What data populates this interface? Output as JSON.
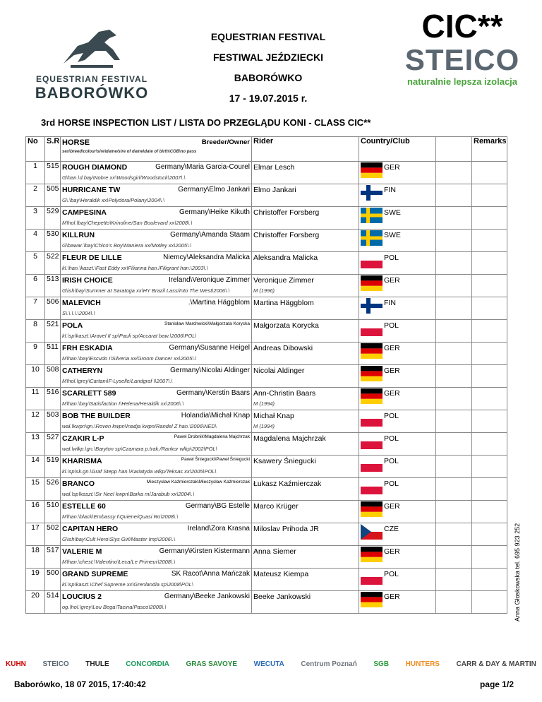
{
  "header": {
    "logo_left_line1": "EQUESTRIAN FESTIVAL",
    "logo_left_line2": "BABORÓWKO",
    "title_lines": [
      "EQUESTRIAN FESTIVAL",
      "FESTIWAL JEŹDZIECKI",
      "BABORÓWKO",
      "17 - 19.07.2015 r."
    ],
    "logo_right_class": "CIC**",
    "logo_right_brand": "STEICO",
    "logo_right_tagline": "naturalnie lepsza izolacja"
  },
  "list_title": "3rd HORSE INSPECTION LIST / LISTA DO PRZEGLĄDU KONI - CLASS CIC**",
  "columns": {
    "no": "No",
    "sreg": "S.Reg.",
    "horse": "HORSE",
    "breeder": "Breeder/Owner",
    "horse_sub": "sex\\breed\\colour\\sire\\dame/sire of dame\\date of birth\\COB\\no pass",
    "rider": "Rider",
    "country": "Country/Club",
    "remarks": "Remarks"
  },
  "flag_colors": {
    "GER": [
      "#000000",
      "#dd0000",
      "#ffce00"
    ],
    "POL": [
      "#ffffff",
      "#dc143c"
    ],
    "FIN": [
      "#ffffff",
      "#003580"
    ],
    "SWE": [
      "#006aa7",
      "#fecc00"
    ],
    "CZE": [
      "#ffffff",
      "#d7141a",
      "#11457e"
    ]
  },
  "rows": [
    {
      "no": "1",
      "sreg": "515",
      "horse": "ROUGH DIAMOND",
      "owner": "Germany\\Maria Garcia-Courel",
      "details": "G\\han.\\d.bay\\Nobre xx\\Woodsgirl/Woodstock\\2007\\.\\",
      "rider": "Elmar Lesch",
      "rider_sub": "",
      "country": "GER"
    },
    {
      "no": "2",
      "sreg": "505",
      "horse": "HURRICANE TW",
      "owner": "Germany\\Elmo Jankari",
      "details": "G\\.\\bay\\Heraldik xx\\Polydora/Polany\\2004\\.\\",
      "rider": "Elmo Jankari",
      "rider_sub": "",
      "country": "FIN"
    },
    {
      "no": "3",
      "sreg": "529",
      "horse": "CAMPESINA",
      "owner": "Germany\\Heike Kikuth",
      "details": "M\\hol.\\bay\\Chepetto\\Krinoline/San Boulevard xx\\2008\\.\\",
      "rider": "Christoffer Forsberg",
      "rider_sub": "",
      "country": "SWE"
    },
    {
      "no": "4",
      "sreg": "530",
      "horse": "KILLRUN",
      "owner": "Germany\\Amanda Staam",
      "details": "G\\bawar.\\bay\\Chico's Boy\\Maniera xx/Motley xx\\2005\\.\\",
      "rider": "Christoffer Forsberg",
      "rider_sub": "",
      "country": "SWE"
    },
    {
      "no": "5",
      "sreg": "522",
      "horse": "FLEUR DE LILLE",
      "owner": "Niemcy\\Aleksandra Malicka",
      "details": "kl.\\han.\\kaszt.\\Fast Eddy xx\\Filianna han./Filigrant han.\\2003\\.\\",
      "rider": "Aleksandra Malicka",
      "rider_sub": "",
      "country": "POL"
    },
    {
      "no": "6",
      "sreg": "513",
      "horse": "IRISH CHOICE",
      "owner": "Ireland\\Veronique Zimmer",
      "details": "G\\ish\\bay\\Summer at Saratoga xx\\HY Brazil Lass/Into The West\\2006\\.\\",
      "rider": "Veronique Zimmer",
      "rider_sub": "M (1996)",
      "country": "GER"
    },
    {
      "no": "7",
      "sreg": "506",
      "horse": "MALEVICH",
      "owner": ".\\Martina Häggblom",
      "details": "S\\.\\.\\.\\.\\2004\\.\\",
      "rider": "Martina Häggblom",
      "rider_sub": "",
      "country": "FIN"
    },
    {
      "no": "8",
      "sreg": "521",
      "horse": "POLA",
      "owner": "Stanisław Marchwicki\\Małgorzata Korycka",
      "owner_small": true,
      "details": "kl.\\sp\\kaszt.\\Aravel II sp\\Pauli sp/Accarat baw.\\2006\\POL\\",
      "rider": "Małgorzata Korycka",
      "rider_sub": "",
      "country": "POL"
    },
    {
      "no": "9",
      "sreg": "511",
      "horse": "FRH ESKADIA",
      "owner": "Germany\\Susanne Heigel",
      "details": "M\\han.\\bay\\Escudo I\\Silveria xx/Groom Dancer xx\\2005\\.\\",
      "rider": "Andreas Dibowski",
      "rider_sub": "",
      "country": "GER"
    },
    {
      "no": "10",
      "sreg": "508",
      "horse": "CATHERYN",
      "owner": "Germany\\Nicolai Aldinger",
      "details": "M\\hol.\\grey\\Cartani\\F-Lyselle/Landgraf I\\2007\\.\\",
      "rider": "Nicolai Aldinger",
      "rider_sub": "",
      "country": "GER"
    },
    {
      "no": "11",
      "sreg": "516",
      "horse": "SCARLETT 589",
      "owner": "Germany\\Kerstin Baars",
      "details": "M\\han.\\bay\\Satisfaction I\\Helena/Heraldik xx\\2006\\.\\",
      "rider": "Ann-Christin Baars",
      "rider_sub": "M (1994)",
      "country": "GER"
    },
    {
      "no": "12",
      "sreg": "503",
      "horse": "BOB THE BUILDER",
      "owner": "Holandia\\Michał Knap",
      "details": "wał.\\kwpn\\gn.\\Roven kwpn\\Inadja kwpn/Randel Z han.\\2006\\NED\\",
      "rider": "Michał Knap",
      "rider_sub": "M (1994)",
      "country": "POL"
    },
    {
      "no": "13",
      "sreg": "527",
      "horse": "CZAKIR L-P",
      "owner": "Paweł Drobnik\\Magdalena Majchrzak",
      "owner_small": true,
      "details": "wał.\\wlkp.\\gn.\\Baryton sp\\Czamara p.trak./Rankor wlkp\\2002\\POL\\",
      "rider": "Magdalena Majchrzak",
      "rider_sub": "",
      "country": "POL"
    },
    {
      "no": "14",
      "sreg": "519",
      "horse": "KHARISMA",
      "owner": "Paweł Śniegucki\\Paweł Śniegucki",
      "owner_small": true,
      "details": "kl.\\sp\\sk.gn.\\Graf Stepp han.\\Kariatyda wlkp/Teksas xx\\2005\\POL\\",
      "rider": "Ksawery Śniegucki",
      "rider_sub": "",
      "country": "POL"
    },
    {
      "no": "15",
      "sreg": "526",
      "horse": "BRANCO",
      "owner": "Mieczysław Kaźmierczak\\Mieczysław Kaźmierczak",
      "owner_small": true,
      "details": "wał.\\sp\\kaszt.\\Sir Neel kwpn\\Barka m/Jarabub xx\\2004\\.\\",
      "rider": "Łukasz Kaźmierczak",
      "rider_sub": "",
      "country": "POL"
    },
    {
      "no": "16",
      "sreg": "510",
      "horse": "ESTELLE 60",
      "owner": "Germany\\BG Estelle",
      "details": "M\\han.\\black\\Embassy I\\Quiene/Quasi Ro\\2008\\.\\",
      "rider": "Marco Krüger",
      "rider_sub": "",
      "country": "GER"
    },
    {
      "no": "17",
      "sreg": "502",
      "horse": "CAPITAN HERO",
      "owner": "Ireland\\Zora Krasna",
      "details": "G\\ish\\bay\\Cult Hero\\Slys Girl/Master Imp\\2006\\.\\",
      "rider": "Miloslav Prihoda JR",
      "rider_sub": "",
      "country": "CZE"
    },
    {
      "no": "18",
      "sreg": "517",
      "horse": "VALERIE M",
      "owner": "Germany\\Kirsten Kistermann",
      "details": "M\\han.\\chest.\\Valentino\\Leca/Le Primeur\\2008\\.\\",
      "rider": "Anna Siemer",
      "rider_sub": "",
      "country": "GER"
    },
    {
      "no": "19",
      "sreg": "500",
      "horse": "GRAND SUPREME",
      "owner": "SK Racot\\Anna Mańczak",
      "details": "kl.\\sp\\kaszt.\\Chef Supreme xx\\Grenlandia sp\\2008\\POL\\",
      "rider": "Mateusz Kiempa",
      "rider_sub": "",
      "country": "POL"
    },
    {
      "no": "20",
      "sreg": "514",
      "horse": "LOUCIUS 2",
      "owner": "Germany\\Beeke Jankowski",
      "details": "og.\\hol.\\grey\\Lou Bega\\Tacina/Pasco\\2008\\.\\",
      "rider": "Beeke Jankowski",
      "rider_sub": "",
      "country": "GER"
    }
  ],
  "side_note": "Anna Głoskowska tel. 695 923 252",
  "footer": {
    "sponsors": [
      "KUHN",
      "STEICO",
      "THULE",
      "CONCORDIA",
      "GRAS SAVOYE",
      "WECUTA",
      "Centrum Poznań",
      "SGB",
      "HUNTERS",
      "CARR & DAY & MARTIN"
    ],
    "timestamp": "Baborówko, 18 07 2015, 17:40:42",
    "page": "page 1/2"
  }
}
